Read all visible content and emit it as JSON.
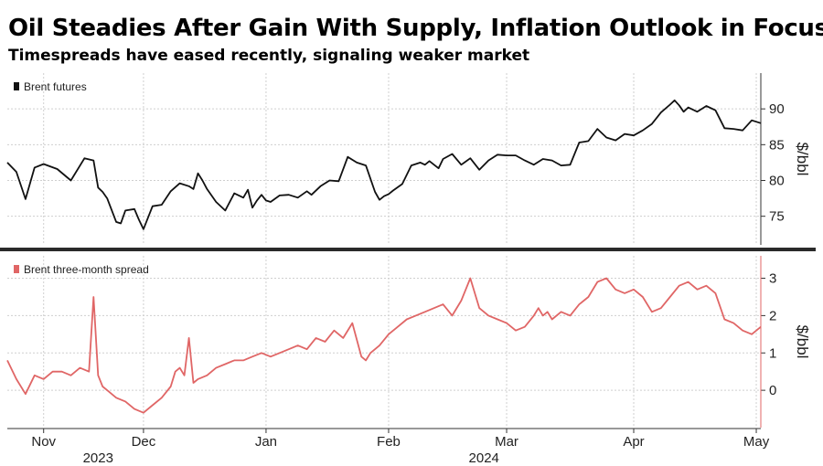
{
  "header": {
    "title": "Oil Steadies After Gain With Supply, Inflation Outlook in Focus",
    "subtitle": "Timespreads have eased recently, signaling weaker market"
  },
  "colors": {
    "brent": "#111111",
    "spread": "#e06666",
    "grid": "#cfcfcf",
    "separator": "#2a2a2a"
  },
  "chart_data": [
    {
      "type": "line",
      "series": [
        {
          "name": "Brent futures",
          "x": [
            0,
            2,
            4,
            6,
            8,
            11,
            14,
            17,
            19,
            20,
            21,
            22,
            24,
            25,
            26,
            28,
            29,
            30,
            32,
            34,
            36,
            38,
            40,
            41,
            42,
            43,
            44,
            46,
            48,
            50,
            52,
            53,
            54,
            55,
            56,
            57,
            58,
            60,
            62,
            64,
            66,
            67,
            69,
            71,
            73,
            75,
            77,
            79,
            81,
            82,
            83,
            84,
            85,
            87,
            89,
            91,
            92,
            93,
            95,
            96,
            98,
            100,
            102,
            104,
            106,
            108,
            110,
            112,
            114,
            116,
            118,
            120,
            122,
            124,
            126,
            128,
            130,
            132,
            134,
            136,
            138,
            140,
            142,
            144,
            146,
            147,
            148,
            149,
            150,
            152,
            154,
            156,
            158,
            160,
            162,
            164,
            166
          ],
          "values": [
            82.5,
            81.2,
            77.4,
            81.8,
            82.3,
            81.6,
            80.0,
            83.1,
            82.8,
            79.0,
            78.4,
            77.5,
            74.2,
            74.0,
            75.8,
            76.0,
            74.5,
            73.2,
            76.4,
            76.6,
            78.5,
            79.6,
            79.2,
            78.8,
            81.0,
            80.0,
            78.8,
            77.0,
            75.8,
            78.2,
            77.6,
            78.7,
            76.2,
            77.2,
            78.0,
            77.2,
            77.0,
            77.9,
            78.0,
            77.6,
            78.5,
            78.0,
            79.2,
            80.0,
            79.9,
            83.3,
            82.5,
            82.1,
            78.4,
            77.3,
            77.8,
            78.1,
            78.6,
            79.5,
            82.1,
            82.5,
            82.2,
            82.7,
            81.7,
            83.0,
            83.7,
            82.2,
            83.1,
            81.5,
            82.8,
            83.6,
            83.5,
            83.5,
            82.8,
            82.2,
            83.0,
            82.8,
            82.1,
            82.2,
            85.3,
            85.5,
            87.2,
            86.0,
            85.6,
            86.5,
            86.3,
            87.0,
            87.9,
            89.5,
            90.6,
            91.2,
            90.5,
            89.6,
            90.2,
            89.6,
            90.4,
            89.8,
            87.3,
            87.2,
            87.0,
            88.4,
            88.0
          ],
          "color": "#111111"
        }
      ],
      "ylabel": "$/bbl",
      "ylim": [
        71,
        95
      ],
      "ticks": [
        75,
        80,
        85,
        90
      ],
      "grid": true,
      "legend": "top-left"
    },
    {
      "type": "line",
      "series": [
        {
          "name": "Brent three-month spread",
          "x": [
            0,
            2,
            4,
            6,
            8,
            10,
            12,
            14,
            16,
            18,
            19,
            20,
            21,
            22,
            24,
            26,
            28,
            30,
            32,
            34,
            36,
            37,
            38,
            39,
            40,
            41,
            42,
            44,
            46,
            48,
            50,
            52,
            54,
            56,
            58,
            60,
            62,
            64,
            66,
            68,
            70,
            72,
            74,
            76,
            78,
            79,
            80,
            82,
            84,
            86,
            88,
            90,
            92,
            94,
            96,
            98,
            100,
            102,
            104,
            106,
            108,
            110,
            112,
            114,
            116,
            117,
            118,
            119,
            120,
            122,
            124,
            126,
            128,
            130,
            132,
            134,
            136,
            138,
            140,
            142,
            144,
            146,
            148,
            150,
            152,
            154,
            156,
            158,
            160,
            162,
            164,
            166
          ],
          "values": [
            0.8,
            0.3,
            -0.1,
            0.4,
            0.3,
            0.5,
            0.5,
            0.4,
            0.6,
            0.5,
            2.5,
            0.4,
            0.1,
            0.0,
            -0.2,
            -0.3,
            -0.5,
            -0.6,
            -0.4,
            -0.2,
            0.1,
            0.5,
            0.6,
            0.4,
            1.4,
            0.2,
            0.3,
            0.4,
            0.6,
            0.7,
            0.8,
            0.8,
            0.9,
            1.0,
            0.9,
            1.0,
            1.1,
            1.2,
            1.1,
            1.4,
            1.3,
            1.6,
            1.4,
            1.8,
            0.9,
            0.8,
            1.0,
            1.2,
            1.5,
            1.7,
            1.9,
            2.0,
            2.1,
            2.2,
            2.3,
            2.0,
            2.4,
            3.0,
            2.2,
            2.0,
            1.9,
            1.8,
            1.6,
            1.7,
            2.0,
            2.2,
            2.0,
            2.1,
            1.9,
            2.1,
            2.0,
            2.3,
            2.5,
            2.9,
            3.0,
            2.7,
            2.6,
            2.7,
            2.5,
            2.1,
            2.2,
            2.5,
            2.8,
            2.9,
            2.7,
            2.8,
            2.6,
            1.9,
            1.8,
            1.6,
            1.5,
            1.7
          ],
          "color": "#e06666"
        }
      ],
      "ylabel": "$/bbl",
      "ylim": [
        -1,
        3.6
      ],
      "ticks": [
        0,
        1,
        2,
        3
      ],
      "grid": true,
      "legend": "top-left"
    }
  ],
  "x_axis": {
    "domain": [
      0,
      166
    ],
    "months": [
      {
        "label": "Nov",
        "x": 8
      },
      {
        "label": "Dec",
        "x": 30
      },
      {
        "label": "Jan",
        "x": 57
      },
      {
        "label": "Feb",
        "x": 84
      },
      {
        "label": "Mar",
        "x": 110
      },
      {
        "label": "Apr",
        "x": 138
      },
      {
        "label": "May",
        "x": 165
      }
    ],
    "years": [
      {
        "label": "2023",
        "x": 20
      },
      {
        "label": "2024",
        "x": 105
      }
    ]
  }
}
